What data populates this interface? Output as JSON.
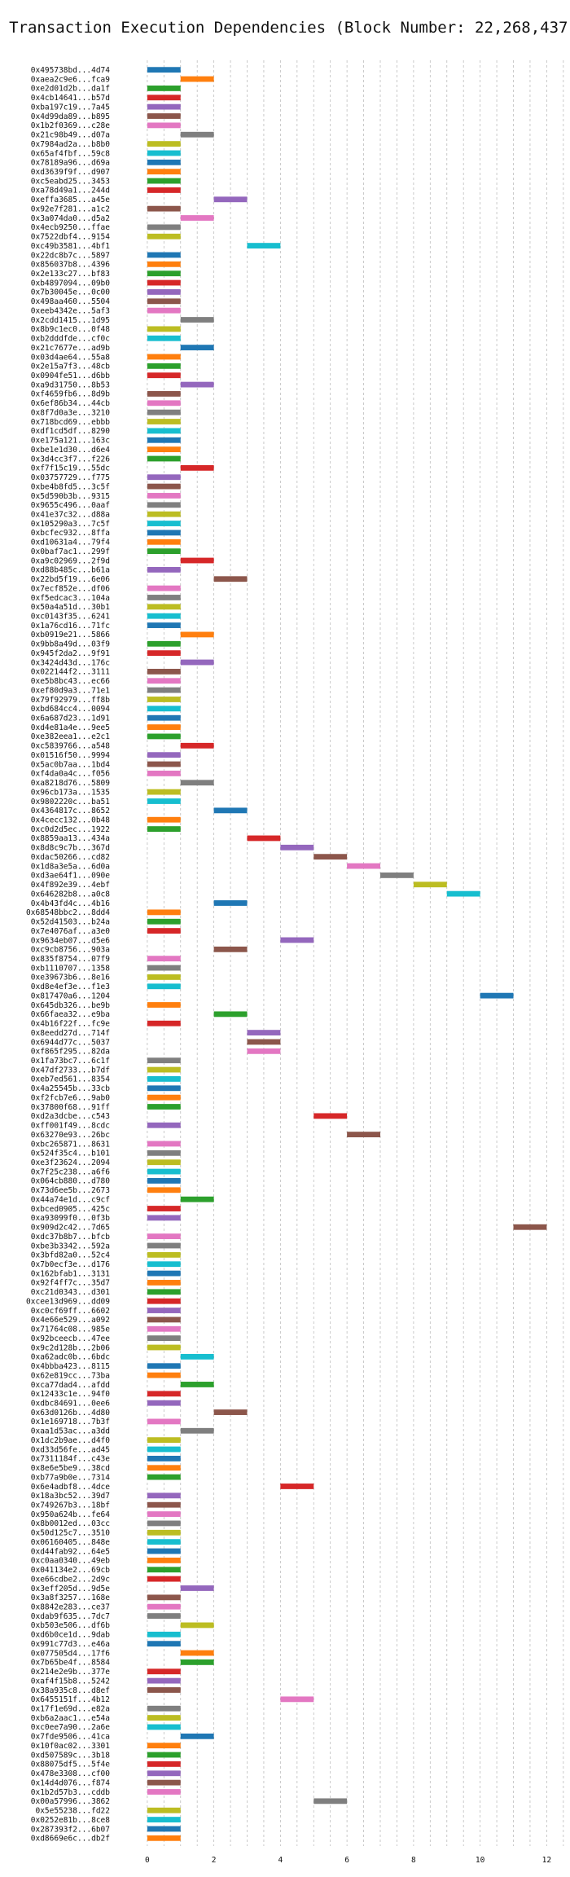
{
  "chart_data": {
    "type": "bar",
    "orientation": "horizontal-gantt",
    "title": "Transaction Execution Dependencies (Block Number: 22,268,437)",
    "xlabel": "",
    "ylabel": "",
    "xlim": [
      -1.0,
      12.7
    ],
    "xticks": [
      0,
      2,
      4,
      6,
      8,
      10,
      12
    ],
    "grid": true,
    "palette": [
      "#1f77b4",
      "#ff7f0e",
      "#2ca02c",
      "#d62728",
      "#9467bd",
      "#8c564b",
      "#e377c2",
      "#7f7f7f",
      "#bcbd22",
      "#17becf"
    ],
    "transactions": [
      {
        "id": "0x495738bd...4d74",
        "start": 0
      },
      {
        "id": "0xaea2c9e6...fca9",
        "start": 1
      },
      {
        "id": "0xe2d01d2b...da1f",
        "start": 0
      },
      {
        "id": "0x4cb14641...b57d",
        "start": 0
      },
      {
        "id": "0xba197c19...7a45",
        "start": 0
      },
      {
        "id": "0x4d99da89...b895",
        "start": 0
      },
      {
        "id": "0x1b2f0369...c28e",
        "start": 0
      },
      {
        "id": "0x21c98b49...d07a",
        "start": 1
      },
      {
        "id": "0x7984ad2a...b8b0",
        "start": 0
      },
      {
        "id": "0x65af4fbf...59c8",
        "start": 0
      },
      {
        "id": "0x78189a96...d69a",
        "start": 0
      },
      {
        "id": "0xd3639f9f...d907",
        "start": 0
      },
      {
        "id": "0xc5eabd25...3453",
        "start": 0
      },
      {
        "id": "0xa78d49a1...244d",
        "start": 0
      },
      {
        "id": "0xeffa3685...a45e",
        "start": 2
      },
      {
        "id": "0x92e7f281...a1c2",
        "start": 0
      },
      {
        "id": "0x3a074da0...d5a2",
        "start": 1
      },
      {
        "id": "0x4ecb9250...ffae",
        "start": 0
      },
      {
        "id": "0x7522dbf4...9154",
        "start": 0
      },
      {
        "id": "0xc49b3581...4bf1",
        "start": 3
      },
      {
        "id": "0x22dc8b7c...5897",
        "start": 0
      },
      {
        "id": "0x856037b8...4396",
        "start": 0
      },
      {
        "id": "0x2e133c27...bf83",
        "start": 0
      },
      {
        "id": "0xb4897094...09b0",
        "start": 0
      },
      {
        "id": "0x7b30045e...0c00",
        "start": 0
      },
      {
        "id": "0x498aa460...5504",
        "start": 0
      },
      {
        "id": "0xeeb4342e...5af3",
        "start": 0
      },
      {
        "id": "0x2cdd1415...1d95",
        "start": 1
      },
      {
        "id": "0x8b9c1ec0...0f48",
        "start": 0
      },
      {
        "id": "0xb2dddfde...cf0c",
        "start": 0
      },
      {
        "id": "0x21c7677e...ad9b",
        "start": 1
      },
      {
        "id": "0x03d4ae64...55a8",
        "start": 0
      },
      {
        "id": "0x2e15a7f3...48cb",
        "start": 0
      },
      {
        "id": "0x0904fe51...d6bb",
        "start": 0
      },
      {
        "id": "0xa9d31750...8b53",
        "start": 1
      },
      {
        "id": "0xf4659fb6...8d9b",
        "start": 0
      },
      {
        "id": "0x6ef86b34...44cb",
        "start": 0
      },
      {
        "id": "0x8f7d0a3e...3210",
        "start": 0
      },
      {
        "id": "0x718bcd69...ebbb",
        "start": 0
      },
      {
        "id": "0xdf1cd5df...8290",
        "start": 0
      },
      {
        "id": "0xe175a121...163c",
        "start": 0
      },
      {
        "id": "0xbe1e1d30...d6e4",
        "start": 0
      },
      {
        "id": "0x3d4cc3f7...f226",
        "start": 0
      },
      {
        "id": "0xf7f15c19...55dc",
        "start": 1
      },
      {
        "id": "0x03757729...f775",
        "start": 0
      },
      {
        "id": "0xbe4b8fd5...3c5f",
        "start": 0
      },
      {
        "id": "0x5d590b3b...9315",
        "start": 0
      },
      {
        "id": "0x9655c496...0aaf",
        "start": 0
      },
      {
        "id": "0x41e37c32...d88a",
        "start": 0
      },
      {
        "id": "0x105290a3...7c5f",
        "start": 0
      },
      {
        "id": "0xbcfec932...8ffa",
        "start": 0
      },
      {
        "id": "0xd10631a4...79f4",
        "start": 0
      },
      {
        "id": "0x0baf7ac1...299f",
        "start": 0
      },
      {
        "id": "0xa9c02969...2f9d",
        "start": 1
      },
      {
        "id": "0xd88b485c...b61a",
        "start": 0
      },
      {
        "id": "0x22bd5f19...6e06",
        "start": 2
      },
      {
        "id": "0x7ecf852e...df06",
        "start": 0
      },
      {
        "id": "0xf5edcac3...104a",
        "start": 0
      },
      {
        "id": "0x50a4a51d...30b1",
        "start": 0
      },
      {
        "id": "0xc0143f35...6241",
        "start": 0
      },
      {
        "id": "0x1a76cd16...71fc",
        "start": 0
      },
      {
        "id": "0xb0919e21...5866",
        "start": 1
      },
      {
        "id": "0x9bb8a49d...03f9",
        "start": 0
      },
      {
        "id": "0x945f2da2...9f91",
        "start": 0
      },
      {
        "id": "0x3424d43d...176c",
        "start": 1
      },
      {
        "id": "0x022144f2...3111",
        "start": 0
      },
      {
        "id": "0xe5b8bc43...ec66",
        "start": 0
      },
      {
        "id": "0xef80d9a3...71e1",
        "start": 0
      },
      {
        "id": "0x79f92979...ff8b",
        "start": 0
      },
      {
        "id": "0xbd684cc4...0094",
        "start": 0
      },
      {
        "id": "0x6a687d23...1d91",
        "start": 0
      },
      {
        "id": "0xd4e81a4e...9ee5",
        "start": 0
      },
      {
        "id": "0xe382eea1...e2c1",
        "start": 0
      },
      {
        "id": "0xc5839766...a548",
        "start": 1
      },
      {
        "id": "0x01516f50...9994",
        "start": 0
      },
      {
        "id": "0x5ac0b7aa...1bd4",
        "start": 0
      },
      {
        "id": "0xf4da0a4c...f056",
        "start": 0
      },
      {
        "id": "0xa8218d76...5809",
        "start": 1
      },
      {
        "id": "0x96cb173a...1535",
        "start": 0
      },
      {
        "id": "0x9802220c...ba51",
        "start": 0
      },
      {
        "id": "0x4364817c...8652",
        "start": 2
      },
      {
        "id": "0x4cecc132...0b48",
        "start": 0
      },
      {
        "id": "0xc0d2d5ec...1922",
        "start": 0
      },
      {
        "id": "0x8859aa13...434a",
        "start": 3
      },
      {
        "id": "0x8d8c9c7b...367d",
        "start": 4
      },
      {
        "id": "0xdac50266...cd82",
        "start": 5
      },
      {
        "id": "0x1d8a3e5a...6d0a",
        "start": 6
      },
      {
        "id": "0xd3ae64f1...090e",
        "start": 7
      },
      {
        "id": "0x4f892e39...4ebf",
        "start": 8
      },
      {
        "id": "0x646282b8...a0c8",
        "start": 9
      },
      {
        "id": "0x4b43fd4c...4b16",
        "start": 2
      },
      {
        "id": "0x68548bbc2...8dd4",
        "start": 0
      },
      {
        "id": "0x52d41503...b24a",
        "start": 0
      },
      {
        "id": "0x7e4076af...a3e0",
        "start": 0
      },
      {
        "id": "0x9634eb07...d5e6",
        "start": 4
      },
      {
        "id": "0xc9cb8756...903a",
        "start": 2
      },
      {
        "id": "0x835f8754...07f9",
        "start": 0
      },
      {
        "id": "0xb1110707...1358",
        "start": 0
      },
      {
        "id": "0xe39673b6...8e16",
        "start": 0
      },
      {
        "id": "0xd8e4ef3e...f1e3",
        "start": 0
      },
      {
        "id": "0x817470a6...1204",
        "start": 10
      },
      {
        "id": "0x645db326...be9b",
        "start": 0
      },
      {
        "id": "0x66faea32...e9ba",
        "start": 2
      },
      {
        "id": "0x4b16f22f...fc9e",
        "start": 0
      },
      {
        "id": "0x8eedd27d...714f",
        "start": 3
      },
      {
        "id": "0x6944d77c...5037",
        "start": 3
      },
      {
        "id": "0xf865f295...82da",
        "start": 3
      },
      {
        "id": "0x1fa73bc7...6c1f",
        "start": 0
      },
      {
        "id": "0x47df2733...b7df",
        "start": 0
      },
      {
        "id": "0xeb7ed561...8354",
        "start": 0
      },
      {
        "id": "0x4a25545b...33cb",
        "start": 0
      },
      {
        "id": "0xf2fcb7e6...9ab0",
        "start": 0
      },
      {
        "id": "0x37800f68...91ff",
        "start": 0
      },
      {
        "id": "0xd2a3dcbe...c543",
        "start": 5
      },
      {
        "id": "0xff001f49...8cdc",
        "start": 0
      },
      {
        "id": "0x63270e93...26bc",
        "start": 6
      },
      {
        "id": "0xbc265871...8631",
        "start": 0
      },
      {
        "id": "0x524f35c4...b101",
        "start": 0
      },
      {
        "id": "0xe3f23624...2094",
        "start": 0
      },
      {
        "id": "0x7f25c238...a6f6",
        "start": 0
      },
      {
        "id": "0x064cb880...d780",
        "start": 0
      },
      {
        "id": "0x73d6ee5b...2673",
        "start": 0
      },
      {
        "id": "0x44a74e1d...c9cf",
        "start": 1
      },
      {
        "id": "0xbced0905...425c",
        "start": 0
      },
      {
        "id": "0xa93099f0...0f3b",
        "start": 0
      },
      {
        "id": "0x909d2c42...7d65",
        "start": 11
      },
      {
        "id": "0xdc37b8b7...bfcb",
        "start": 0
      },
      {
        "id": "0xbe3b3342...592a",
        "start": 0
      },
      {
        "id": "0x3bfd82a0...52c4",
        "start": 0
      },
      {
        "id": "0x7b0ecf3e...d176",
        "start": 0
      },
      {
        "id": "0x162bfab1...3131",
        "start": 0
      },
      {
        "id": "0x92f4ff7c...35d7",
        "start": 0
      },
      {
        "id": "0xc21d0343...d301",
        "start": 0
      },
      {
        "id": "0xcee13d969...dd09",
        "start": 0
      },
      {
        "id": "0xc0cf69ff...6602",
        "start": 0
      },
      {
        "id": "0x4e66e529...a092",
        "start": 0
      },
      {
        "id": "0x71764c08...985e",
        "start": 0
      },
      {
        "id": "0x92bceecb...47ee",
        "start": 0
      },
      {
        "id": "0x9c2d128b...2b06",
        "start": 0
      },
      {
        "id": "0xa62adc0b...6bdc",
        "start": 1
      },
      {
        "id": "0x4bbba423...8115",
        "start": 0
      },
      {
        "id": "0x62e819cc...73ba",
        "start": 0
      },
      {
        "id": "0xca77dad4...afdd",
        "start": 1
      },
      {
        "id": "0x12433c1e...94f0",
        "start": 0
      },
      {
        "id": "0xdbc84691...0ee6",
        "start": 0
      },
      {
        "id": "0x63d0126b...4d80",
        "start": 2
      },
      {
        "id": "0x1e169718...7b3f",
        "start": 0
      },
      {
        "id": "0xaa1d53ac...a3dd",
        "start": 1
      },
      {
        "id": "0x1dc2b9ae...d4f0",
        "start": 0
      },
      {
        "id": "0xd33d56fe...ad45",
        "start": 0
      },
      {
        "id": "0x7311184f...c43e",
        "start": 0
      },
      {
        "id": "0x8e6e5be9...38cd",
        "start": 0
      },
      {
        "id": "0xb77a9b0e...7314",
        "start": 0
      },
      {
        "id": "0x6e4adbf8...4dce",
        "start": 4
      },
      {
        "id": "0x18a3bc52...39d7",
        "start": 0
      },
      {
        "id": "0x749267b3...18bf",
        "start": 0
      },
      {
        "id": "0x950a624b...fe64",
        "start": 0
      },
      {
        "id": "0x8b0012ed...03cc",
        "start": 0
      },
      {
        "id": "0x50d125c7...3510",
        "start": 0
      },
      {
        "id": "0x06160405...848e",
        "start": 0
      },
      {
        "id": "0xd44fab92...64e5",
        "start": 0
      },
      {
        "id": "0xc0aa0340...49eb",
        "start": 0
      },
      {
        "id": "0x041134e2...69cb",
        "start": 0
      },
      {
        "id": "0xe66cdbe2...2d9c",
        "start": 0
      },
      {
        "id": "0x3eff205d...9d5e",
        "start": 1
      },
      {
        "id": "0x3a8f3257...168e",
        "start": 0
      },
      {
        "id": "0x8842e283...ce37",
        "start": 0
      },
      {
        "id": "0xdab9f635...7dc7",
        "start": 0
      },
      {
        "id": "0xb503e506...df6b",
        "start": 1
      },
      {
        "id": "0xd6b0ce1d...9dab",
        "start": 0
      },
      {
        "id": "0x991c77d3...e46a",
        "start": 0
      },
      {
        "id": "0x077505d4...17f6",
        "start": 1
      },
      {
        "id": "0x7b65be4f...8584",
        "start": 1
      },
      {
        "id": "0x214e2e9b...377e",
        "start": 0
      },
      {
        "id": "0xaf4f15b8...5242",
        "start": 0
      },
      {
        "id": "0x38a935c8...d8ef",
        "start": 0
      },
      {
        "id": "0x6455151f...4b12",
        "start": 4
      },
      {
        "id": "0x17f1e69d...e82a",
        "start": 0
      },
      {
        "id": "0xb6a2aac1...e54a",
        "start": 0
      },
      {
        "id": "0xc0ee7a90...2a6e",
        "start": 0
      },
      {
        "id": "0x7fde9506...41ca",
        "start": 1
      },
      {
        "id": "0x10f0ac02...3301",
        "start": 0
      },
      {
        "id": "0xd507589c...3b18",
        "start": 0
      },
      {
        "id": "0x88075df5...5f4e",
        "start": 0
      },
      {
        "id": "0x478e3308...cf00",
        "start": 0
      },
      {
        "id": "0x14d4d076...f874",
        "start": 0
      },
      {
        "id": "0x1b2d57b3...cddb",
        "start": 0
      },
      {
        "id": "0x00a57996...3862",
        "start": 5
      },
      {
        "id": "0x5e55238...fd22",
        "start": 0
      },
      {
        "id": "0x0252e81b...8ce8",
        "start": 0
      },
      {
        "id": "0x287393f2...6b07",
        "start": 0
      },
      {
        "id": "0xd8669e6c...db2f",
        "start": 0
      }
    ]
  }
}
